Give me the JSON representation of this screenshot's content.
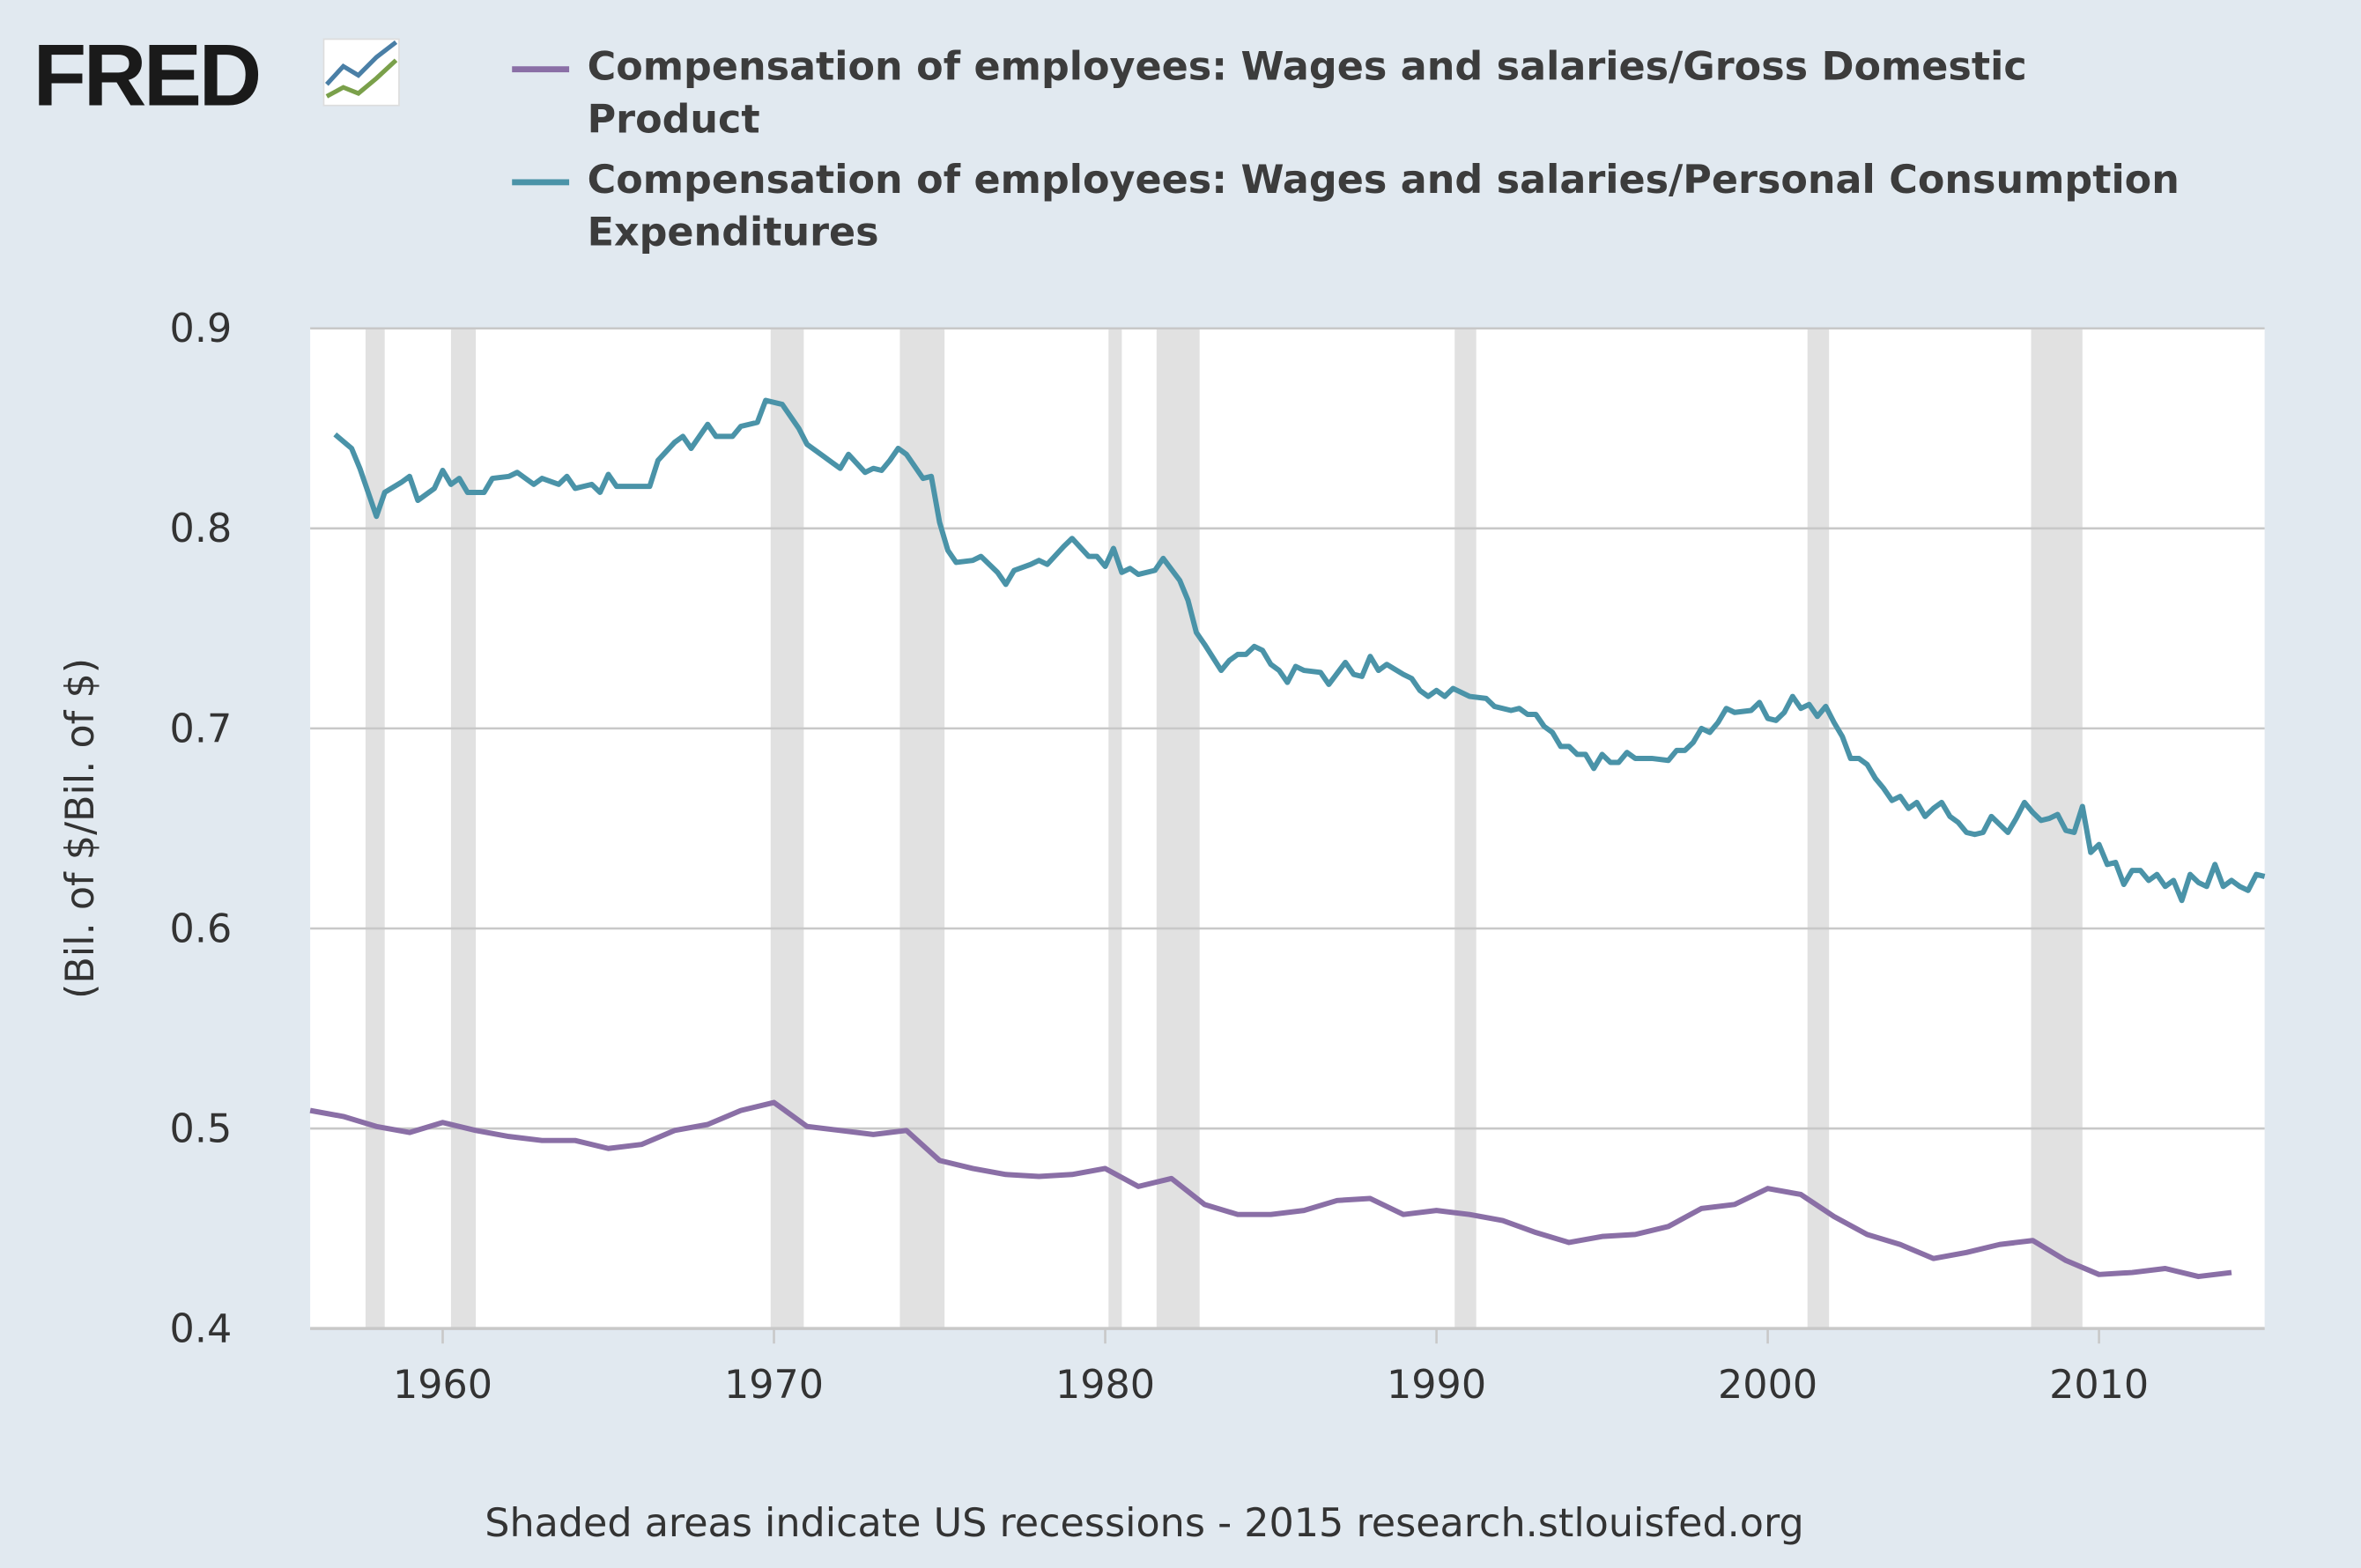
{
  "chart_data": {
    "type": "line",
    "logo": "FRED",
    "y_label": "(Bil. of $/Bil. of $)",
    "note": "Shaded areas indicate US recessions - 2015 research.stlouisfed.org",
    "xlim": [
      1956,
      2015
    ],
    "xticks": [
      1960,
      1970,
      1980,
      1990,
      2000,
      2010
    ],
    "ylim": [
      0.4,
      0.9
    ],
    "yticks": [
      0.4,
      0.5,
      0.6,
      0.7,
      0.8,
      0.9
    ],
    "grid": true,
    "recessions": [
      [
        1957.67,
        1958.25
      ],
      [
        1960.25,
        1961.0
      ],
      [
        1969.9,
        1970.9
      ],
      [
        1973.8,
        1975.15
      ],
      [
        1980.1,
        1980.5
      ],
      [
        1981.55,
        1982.85
      ],
      [
        1990.55,
        1991.2
      ],
      [
        2001.2,
        2001.85
      ],
      [
        2007.95,
        2009.5
      ]
    ],
    "series": [
      {
        "name": "Compensation of employees: Wages and salaries/Gross Domestic Product",
        "color": "#8a6fa6",
        "x": [
          1956,
          1957,
          1958,
          1959,
          1960,
          1961,
          1962,
          1963,
          1964,
          1965,
          1966,
          1967,
          1968,
          1969,
          1970,
          1971,
          1972,
          1973,
          1974,
          1975,
          1976,
          1977,
          1978,
          1979,
          1980,
          1981,
          1982,
          1983,
          1984,
          1985,
          1986,
          1987,
          1988,
          1989,
          1990,
          1991,
          1992,
          1993,
          1994,
          1995,
          1996,
          1997,
          1998,
          1999,
          2000,
          2001,
          2002,
          2003,
          2004,
          2005,
          2006,
          2007,
          2008,
          2009,
          2010,
          2011,
          2012,
          2013,
          2014
        ],
        "values": [
          0.509,
          0.506,
          0.501,
          0.498,
          0.503,
          0.499,
          0.496,
          0.494,
          0.494,
          0.49,
          0.492,
          0.499,
          0.502,
          0.509,
          0.513,
          0.501,
          0.499,
          0.497,
          0.499,
          0.484,
          0.48,
          0.477,
          0.476,
          0.477,
          0.48,
          0.471,
          0.475,
          0.462,
          0.457,
          0.457,
          0.459,
          0.464,
          0.465,
          0.457,
          0.459,
          0.457,
          0.454,
          0.448,
          0.443,
          0.446,
          0.447,
          0.451,
          0.46,
          0.462,
          0.47,
          0.467,
          0.456,
          0.447,
          0.442,
          0.435,
          0.438,
          0.442,
          0.444,
          0.434,
          0.427,
          0.428,
          0.43,
          0.426,
          0.428
        ]
      },
      {
        "name": "Compensation of employees: Wages and salaries/Personal Consumption Expenditures",
        "color": "#4a93a8",
        "x": [
          1956.75,
          1957.25,
          1957.5,
          1958,
          1958.25,
          1958.75,
          1959,
          1959.25,
          1959.75,
          1960,
          1960.25,
          1960.5,
          1960.75,
          1961.25,
          1961.5,
          1962,
          1962.25,
          1962.75,
          1963,
          1963.5,
          1963.75,
          1964,
          1964.5,
          1964.75,
          1965,
          1965.25,
          1965.75,
          1966.25,
          1966.5,
          1967,
          1967.25,
          1967.5,
          1968,
          1968.25,
          1968.75,
          1969,
          1969.5,
          1969.75,
          1970.25,
          1970.75,
          1971,
          1971.5,
          1971.75,
          1972,
          1972.25,
          1972.75,
          1973,
          1973.25,
          1973.5,
          1973.75,
          1974,
          1974.5,
          1974.75,
          1975,
          1975.25,
          1975.5,
          1976,
          1976.25,
          1976.75,
          1977,
          1977.25,
          1977.75,
          1978,
          1978.25,
          1978.75,
          1979,
          1979.5,
          1979.75,
          1980,
          1980.25,
          1980.5,
          1980.75,
          1981,
          1981.5,
          1981.75,
          1982.25,
          1982.5,
          1982.75,
          1983,
          1983.5,
          1983.75,
          1984,
          1984.25,
          1984.5,
          1984.75,
          1985,
          1985.25,
          1985.5,
          1985.75,
          1986,
          1986.5,
          1986.75,
          1987.25,
          1987.5,
          1987.75,
          1988,
          1988.25,
          1988.5,
          1989,
          1989.25,
          1989.5,
          1989.75,
          1990,
          1990.25,
          1990.5,
          1991,
          1991.5,
          1991.75,
          1992.25,
          1992.5,
          1992.75,
          1993,
          1993.25,
          1993.5,
          1993.75,
          1994,
          1994.25,
          1994.5,
          1994.75,
          1995,
          1995.25,
          1995.5,
          1995.75,
          1996,
          1996.5,
          1997,
          1997.25,
          1997.5,
          1997.75,
          1998,
          1998.25,
          1998.5,
          1998.75,
          1999,
          1999.5,
          1999.75,
          2000,
          2000.25,
          2000.5,
          2000.75,
          2001,
          2001.25,
          2001.5,
          2001.75,
          2002,
          2002.25,
          2002.5,
          2002.75,
          2003,
          2003.25,
          2003.5,
          2003.75,
          2004,
          2004.25,
          2004.5,
          2004.75,
          2005,
          2005.25,
          2005.5,
          2005.75,
          2006,
          2006.25,
          2006.5,
          2006.75,
          2007,
          2007.25,
          2007.5,
          2007.75,
          2008,
          2008.25,
          2008.5,
          2008.75,
          2009,
          2009.25,
          2009.5,
          2009.75,
          2010,
          2010.25,
          2010.5,
          2010.75,
          2011,
          2011.25,
          2011.5,
          2011.75,
          2012,
          2012.25,
          2012.5,
          2012.75,
          2013,
          2013.25,
          2013.5,
          2013.75,
          2014,
          2014.25,
          2014.5,
          2014.75,
          2015
        ],
        "values": [
          0.847,
          0.84,
          0.83,
          0.806,
          0.818,
          0.823,
          0.826,
          0.814,
          0.82,
          0.829,
          0.822,
          0.825,
          0.818,
          0.818,
          0.825,
          0.826,
          0.828,
          0.822,
          0.825,
          0.822,
          0.826,
          0.82,
          0.822,
          0.818,
          0.827,
          0.821,
          0.821,
          0.821,
          0.834,
          0.843,
          0.846,
          0.84,
          0.852,
          0.846,
          0.846,
          0.851,
          0.853,
          0.864,
          0.862,
          0.85,
          0.842,
          0.836,
          0.833,
          0.83,
          0.837,
          0.828,
          0.83,
          0.829,
          0.834,
          0.84,
          0.837,
          0.825,
          0.826,
          0.803,
          0.789,
          0.783,
          0.784,
          0.786,
          0.778,
          0.772,
          0.779,
          0.782,
          0.784,
          0.782,
          0.791,
          0.795,
          0.786,
          0.786,
          0.781,
          0.79,
          0.778,
          0.78,
          0.777,
          0.779,
          0.785,
          0.774,
          0.764,
          0.748,
          0.742,
          0.729,
          0.734,
          0.737,
          0.737,
          0.741,
          0.739,
          0.732,
          0.729,
          0.723,
          0.731,
          0.729,
          0.728,
          0.722,
          0.733,
          0.727,
          0.726,
          0.736,
          0.729,
          0.732,
          0.727,
          0.725,
          0.719,
          0.716,
          0.719,
          0.716,
          0.72,
          0.716,
          0.715,
          0.711,
          0.709,
          0.71,
          0.707,
          0.707,
          0.701,
          0.698,
          0.691,
          0.691,
          0.687,
          0.687,
          0.68,
          0.687,
          0.683,
          0.683,
          0.688,
          0.685,
          0.685,
          0.684,
          0.689,
          0.689,
          0.693,
          0.7,
          0.698,
          0.703,
          0.71,
          0.708,
          0.709,
          0.713,
          0.705,
          0.704,
          0.708,
          0.716,
          0.71,
          0.712,
          0.706,
          0.711,
          0.703,
          0.696,
          0.685,
          0.685,
          0.682,
          0.675,
          0.67,
          0.664,
          0.666,
          0.66,
          0.663,
          0.656,
          0.66,
          0.663,
          0.656,
          0.653,
          0.648,
          0.647,
          0.648,
          0.656,
          0.652,
          0.648,
          0.655,
          0.663,
          0.658,
          0.654,
          0.655,
          0.657,
          0.649,
          0.648,
          0.661,
          0.638,
          0.642,
          0.632,
          0.633,
          0.622,
          0.629,
          0.629,
          0.624,
          0.627,
          0.621,
          0.624,
          0.614,
          0.627,
          0.623,
          0.621,
          0.632,
          0.621,
          0.624,
          0.621,
          0.619,
          0.627,
          0.626
        ]
      }
    ]
  }
}
